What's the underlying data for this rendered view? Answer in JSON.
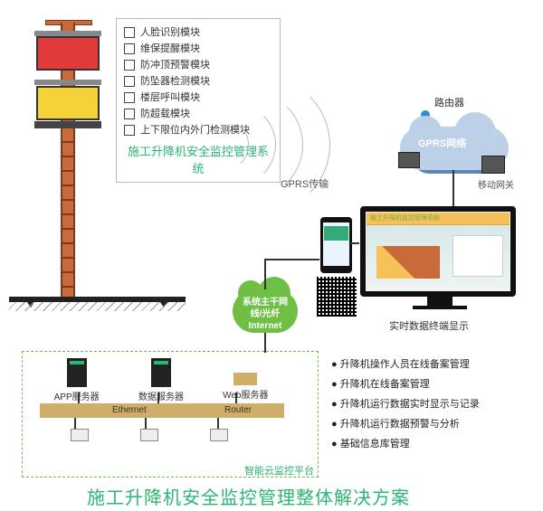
{
  "type": "infographic",
  "background_color": "#ffffff",
  "accent_green": "#2bb673",
  "cloud_green": "#6fbf44",
  "cloud_blue": "#bcd0e8",
  "elevator": {
    "mast_color": "#c96a3a",
    "mast_border": "#7a3c1e",
    "cage_top_color": "#e13a3a",
    "cage_bottom_color": "#f4d23a",
    "ground_color": "#222222"
  },
  "modules": {
    "title": "施工升降机安全监控管理系统",
    "items": [
      "人脸识别模块",
      "维保提醒模块",
      "防冲顶预警模块",
      "防坠器检测模块",
      "楼层呼叫模块",
      "防超载模块",
      "上下限位内外门检测模块"
    ]
  },
  "gprs": {
    "transmit_label": "GPRS传输",
    "cloud_label": "GPRS网络"
  },
  "network": {
    "router_label": "路由器",
    "gateway_label": "移动网关",
    "backbone": "系统主干网线/光纤",
    "backbone_en": "Internet",
    "display_label": "实时数据终端显示"
  },
  "servers": {
    "box_title": "智能云监控平台",
    "app": "APP服务器",
    "data": "数据服务器",
    "web": "Web服务器",
    "ethernet": "Ethernet",
    "router": "Router",
    "bar_color": "#cfae6a"
  },
  "features": [
    "升降机操作人员在线备案管理",
    "升降机在线备案管理",
    "升降机运行数据实时显示与记录",
    "升降机运行数据预警与分析",
    "基础信息库管理"
  ],
  "monitor": {
    "header_bg": "#f5c158",
    "header_text": "施工升降机监控管理系统"
  },
  "main_title": "施工升降机安全监控管理整体解决方案",
  "fonts": {
    "title_pt": 20,
    "subtitle_pt": 13,
    "body_pt": 11,
    "small_pt": 10
  }
}
